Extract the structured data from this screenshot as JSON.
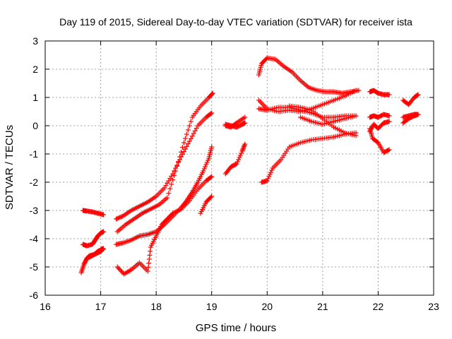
{
  "chart_data": {
    "type": "scatter",
    "title": "Day 119 of 2015, Sidereal Day-to-day VTEC variation (SDTVAR) for receiver ista",
    "xlabel": "GPS time / hours",
    "ylabel": "SDTVAR / TECUs",
    "xlim": [
      16,
      23
    ],
    "ylim": [
      -6,
      3
    ],
    "xticks": [
      16,
      17,
      18,
      19,
      20,
      21,
      22,
      23
    ],
    "yticks": [
      -6,
      -5,
      -4,
      -3,
      -2,
      -1,
      0,
      1,
      2,
      3
    ],
    "xtick_labels": [
      "16",
      "17",
      "18",
      "19",
      "20",
      "21",
      "22",
      "23"
    ],
    "ytick_labels": [
      "-6",
      "-5",
      "-4",
      "-3",
      "-2",
      "-1",
      "0",
      "1",
      "2",
      "3"
    ],
    "grid": true,
    "marker": "plus",
    "color": "#ff0000",
    "series": [
      {
        "x": [
          16.68,
          16.75,
          16.85,
          16.95,
          17.05
        ],
        "y": [
          -3.0,
          -3.02,
          -3.05,
          -3.1,
          -3.15
        ]
      },
      {
        "x": [
          16.65,
          16.7,
          16.75,
          16.8,
          16.9,
          17.0,
          17.05
        ],
        "y": [
          -5.2,
          -4.9,
          -4.7,
          -4.6,
          -4.55,
          -4.45,
          -4.35
        ]
      },
      {
        "x": [
          16.68,
          16.75,
          16.85,
          16.9,
          16.95,
          17.0,
          17.05
        ],
        "y": [
          -4.2,
          -4.25,
          -4.2,
          -4.05,
          -3.9,
          -3.8,
          -3.75
        ]
      },
      {
        "x": [
          16.75,
          16.85,
          16.92,
          16.95,
          17.0,
          17.03
        ],
        "y": [
          -4.7,
          -4.6,
          -4.5,
          -4.45,
          -4.4,
          -4.35
        ]
      },
      {
        "x": [
          17.28,
          17.4,
          17.55,
          17.7,
          17.85,
          18.0,
          18.15,
          18.3,
          18.45,
          18.55,
          18.65,
          18.75,
          18.85,
          18.95,
          19.0
        ],
        "y": [
          -4.2,
          -4.15,
          -4.05,
          -3.9,
          -3.85,
          -3.75,
          -3.5,
          -3.2,
          -2.9,
          -2.65,
          -2.35,
          -2.0,
          -1.6,
          -1.15,
          -0.75
        ]
      },
      {
        "x": [
          17.28,
          17.4,
          17.55,
          17.7,
          17.85,
          18.0,
          18.15,
          18.3,
          18.45,
          18.6,
          18.75,
          18.9,
          19.0
        ],
        "y": [
          -3.3,
          -3.2,
          -3.0,
          -2.85,
          -2.7,
          -2.5,
          -2.2,
          -1.7,
          -1.1,
          -0.55,
          0.0,
          0.3,
          0.45
        ]
      },
      {
        "x": [
          17.3,
          17.45,
          17.6,
          17.75,
          17.9,
          18.05,
          18.2,
          18.35,
          18.5,
          18.65,
          18.8,
          18.95,
          19.02
        ],
        "y": [
          -3.75,
          -3.5,
          -3.3,
          -3.1,
          -2.95,
          -2.8,
          -2.55,
          -1.6,
          -0.6,
          0.3,
          0.7,
          1.0,
          1.15
        ]
      },
      {
        "x": [
          17.3,
          17.42,
          17.55,
          17.7,
          17.85,
          17.9,
          18.0,
          18.1,
          18.2,
          18.3,
          18.45,
          18.6,
          18.75,
          18.9,
          19.0
        ],
        "y": [
          -5.0,
          -5.25,
          -5.1,
          -4.85,
          -5.15,
          -4.3,
          -3.9,
          -3.5,
          -3.3,
          -3.1,
          -2.95,
          -2.65,
          -2.25,
          -1.95,
          -1.8
        ]
      },
      {
        "x": [
          18.8,
          18.9,
          19.0
        ],
        "y": [
          -3.1,
          -2.7,
          -2.5
        ]
      },
      {
        "x": [
          19.25,
          19.35,
          19.45,
          19.6
        ],
        "y": [
          0.0,
          -0.05,
          0.1,
          0.3
        ]
      },
      {
        "x": [
          19.25,
          19.35,
          19.45,
          19.55,
          19.6
        ],
        "y": [
          0.05,
          0.0,
          -0.05,
          0.05,
          0.1
        ]
      },
      {
        "x": [
          19.25,
          19.35,
          19.45,
          19.55,
          19.6
        ],
        "y": [
          -1.7,
          -1.45,
          -1.35,
          -0.9,
          -0.65
        ]
      },
      {
        "x": [
          19.85,
          19.9,
          20.0,
          20.15,
          20.3,
          20.45,
          20.6,
          20.75,
          20.9,
          21.05,
          21.2,
          21.35,
          21.5,
          21.65
        ],
        "y": [
          1.8,
          2.2,
          2.4,
          2.35,
          2.1,
          1.9,
          1.6,
          1.35,
          1.25,
          1.2,
          1.2,
          1.15,
          1.2,
          1.25
        ]
      },
      {
        "x": [
          19.85,
          20.0,
          20.2,
          20.4,
          20.6,
          20.8,
          21.0,
          21.2,
          21.4,
          21.6
        ],
        "y": [
          0.9,
          0.6,
          0.5,
          0.55,
          0.5,
          0.6,
          0.75,
          0.9,
          1.05,
          1.25
        ]
      },
      {
        "x": [
          19.85,
          20.0,
          20.2,
          20.4,
          20.6,
          20.8,
          21.0,
          21.2,
          21.4,
          21.6
        ],
        "y": [
          0.6,
          0.55,
          0.65,
          0.65,
          0.55,
          0.45,
          0.3,
          0.3,
          0.35,
          0.35
        ]
      },
      {
        "x": [
          20.4,
          20.6,
          20.8,
          21.0,
          21.2,
          21.4,
          21.6
        ],
        "y": [
          0.7,
          0.65,
          0.55,
          0.25,
          -0.05,
          -0.25,
          -0.35
        ]
      },
      {
        "x": [
          19.9,
          20.0,
          20.1,
          20.25,
          20.4,
          20.6,
          20.8,
          21.0,
          21.2,
          21.4,
          21.6
        ],
        "y": [
          -2.0,
          -1.95,
          -1.5,
          -1.2,
          -0.75,
          -0.6,
          -0.5,
          -0.45,
          -0.4,
          -0.3,
          -0.25
        ]
      },
      {
        "x": [
          20.6,
          20.8,
          21.0,
          21.2,
          21.4,
          21.6
        ],
        "y": [
          0.3,
          0.15,
          0.05,
          0.15,
          0.25,
          0.35
        ]
      },
      {
        "x": [
          21.85,
          21.92,
          22.0,
          22.1,
          22.2
        ],
        "y": [
          1.2,
          1.25,
          1.15,
          1.1,
          1.1
        ]
      },
      {
        "x": [
          21.85,
          21.92,
          22.0,
          22.1,
          22.2
        ],
        "y": [
          0.3,
          0.35,
          0.3,
          0.4,
          0.35
        ]
      },
      {
        "x": [
          21.85,
          21.9,
          22.0,
          22.1,
          22.2
        ],
        "y": [
          -0.1,
          -0.45,
          -0.6,
          -0.95,
          -0.85
        ]
      },
      {
        "x": [
          21.85,
          21.92,
          22.0,
          22.1,
          22.2
        ],
        "y": [
          -0.2,
          0.05,
          -0.1,
          0.1,
          0.15
        ]
      },
      {
        "x": [
          22.45,
          22.55,
          22.65,
          22.72
        ],
        "y": [
          0.9,
          0.75,
          1.0,
          1.1
        ]
      },
      {
        "x": [
          22.45,
          22.55,
          22.65,
          22.72
        ],
        "y": [
          0.3,
          0.35,
          0.4,
          0.4
        ]
      },
      {
        "x": [
          22.45,
          22.55,
          22.65,
          22.72
        ],
        "y": [
          0.1,
          0.25,
          0.35,
          0.4
        ]
      }
    ]
  }
}
